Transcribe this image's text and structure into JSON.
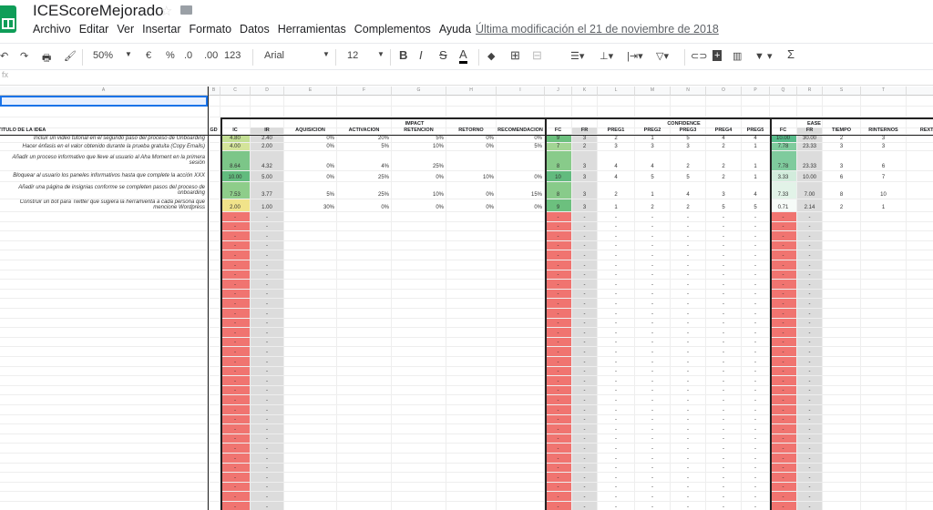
{
  "app": {
    "title": "ICEScoreMejorado",
    "last_modified": "Última modificación el 21 de noviembre de 2018",
    "menu": [
      "Archivo",
      "Editar",
      "Ver",
      "Insertar",
      "Formato",
      "Datos",
      "Herramientas",
      "Complementos",
      "Ayuda"
    ]
  },
  "toolbar": {
    "zoom": "50%",
    "currency": "€",
    "percent": "%",
    "dec_less": ".0",
    "dec_more": ".00",
    "format": "123",
    "font": "Arial",
    "font_size": "12",
    "bold": "B",
    "italic": "I",
    "strike": "S",
    "text_color": "A",
    "sum": "Σ",
    "icons": [
      "undo-icon",
      "redo-icon",
      "print-icon",
      "paint-format-icon",
      "fill-color-icon",
      "borders-icon",
      "merge-icon",
      "align-icon",
      "valign-icon",
      "wrap-icon",
      "rotate-icon",
      "link-icon",
      "comment-icon",
      "chart-icon",
      "filter-icon",
      "functions-icon"
    ]
  },
  "formula_bar": {
    "fx": "fx"
  },
  "columns": [
    "A",
    "B",
    "C",
    "D",
    "E",
    "F",
    "G",
    "H",
    "I",
    "J",
    "K",
    "L",
    "M",
    "N",
    "O",
    "P",
    "Q",
    "R",
    "S",
    "T",
    "U"
  ],
  "groups": {
    "impact": "IMPACT",
    "confidence": "CONFIDENCE",
    "ease": "EASE"
  },
  "headers": [
    "TITULO DE LA IDEA",
    "GD",
    "IC",
    "IR",
    "AQUISICIÓN",
    "ACTIVACIÓN",
    "RETENCIÓN",
    "RETORNO",
    "RECOMENDACIÓN",
    "FC",
    "FR",
    "PREG1",
    "PREG2",
    "PREG3",
    "PREG4",
    "PREG5",
    "FC",
    "FR",
    "TIEMPO",
    "RINTERNOS",
    "REXTERNOS"
  ],
  "colors": {
    "empty_score": "#f07470",
    "grey_col": "#dcdcdc",
    "selection": "#e8f0fe",
    "accent": "#1a73e8"
  },
  "rows": [
    {
      "cells": [
        "Incluir un video tutorial en el segundo paso del proceso de Onboarding",
        "",
        "4.80",
        "2.40",
        "0%",
        "20%",
        "5%",
        "0%",
        "0%",
        "9",
        "3",
        "2",
        "1",
        "5",
        "4",
        "4",
        "10.00",
        "30.00",
        "2",
        "3",
        ""
      ],
      "ic_color": "#c3df95",
      "fc_color": "#6cc07e",
      "fc2_color": "#57bb8a"
    },
    {
      "cells": [
        "Hacer énfasis en el valor obtenido durante la prueba gratuita (Copy Emails)",
        "",
        "4.00",
        "2.00",
        "0%",
        "5%",
        "10%",
        "0%",
        "5%",
        "7",
        "2",
        "3",
        "3",
        "3",
        "2",
        "1",
        "7.78",
        "23.33",
        "3",
        "3",
        ""
      ],
      "ic_color": "#d4e49a",
      "fc_color": "#a2d594",
      "fc2_color": "#7fcb9d"
    },
    {
      "cells": [
        "Añadir un proceso informativo que lleve al usuario al Aha Moment en la primera sesión",
        "",
        "8.64",
        "4.32",
        "0%",
        "4%",
        "25%",
        "",
        "",
        "8",
        "3",
        "4",
        "4",
        "2",
        "2",
        "1",
        "7.78",
        "23.33",
        "3",
        "6",
        ""
      ],
      "ic_color": "#7cc688",
      "fc_color": "#88cb8a",
      "fc2_color": "#7fcb9d"
    },
    {
      "cells": [
        "Bloquear al usuario los paneles informativos hasta que complete la acción XXX",
        "",
        "10.00",
        "5.00",
        "0%",
        "25%",
        "0%",
        "10%",
        "0%",
        "10",
        "3",
        "4",
        "5",
        "5",
        "2",
        "1",
        "3.33",
        "10.00",
        "6",
        "7",
        ""
      ],
      "ic_color": "#62bb7e",
      "fc_color": "#62bb7e",
      "fc2_color": "#d2ecdc"
    },
    {
      "cells": [
        "Añadir una página de insignias conforme se completen pasos del proceso de onboarding",
        "",
        "7.53",
        "3.77",
        "5%",
        "25%",
        "10%",
        "0%",
        "15%",
        "8",
        "3",
        "2",
        "1",
        "4",
        "3",
        "4",
        "7.33",
        "7.00",
        "8",
        "10",
        ""
      ],
      "ic_color": "#8ecd8a",
      "fc_color": "#88cb8a",
      "fc2_color": "#e2f3e8"
    },
    {
      "cells": [
        "Construir un bot para Twitter que sugiera la herramienta a cada persona que mencione Wordpress",
        "",
        "2.00",
        "1.00",
        "30%",
        "0%",
        "0%",
        "0%",
        "0%",
        "9",
        "3",
        "1",
        "2",
        "2",
        "5",
        "5",
        "0.71",
        "2.14",
        "2",
        "1",
        ""
      ],
      "ic_color": "#f1e38a",
      "fc_color": "#6cc07e",
      "fc2_color": "#f6fbf8"
    }
  ],
  "empty_placeholder": "-"
}
